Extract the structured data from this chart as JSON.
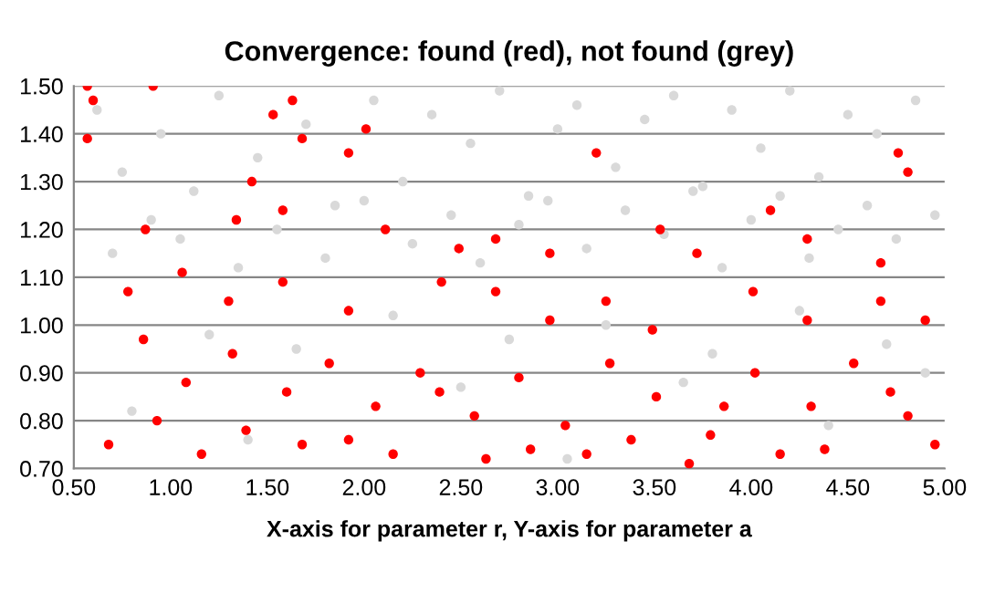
{
  "chart_data": {
    "type": "scatter",
    "title": "Convergence: found (red), not found (grey)",
    "xlabel": "X-axis for parameter r, Y-axis for parameter a",
    "xlim": [
      0.5,
      5.0
    ],
    "ylim": [
      0.7,
      1.5
    ],
    "xticks": [
      {
        "value": 0.5,
        "label": "0.50"
      },
      {
        "value": 1.0,
        "label": "1.00"
      },
      {
        "value": 1.5,
        "label": "1.50"
      },
      {
        "value": 2.0,
        "label": "2.00"
      },
      {
        "value": 2.5,
        "label": "2.50"
      },
      {
        "value": 3.0,
        "label": "3.00"
      },
      {
        "value": 3.5,
        "label": "3.50"
      },
      {
        "value": 4.0,
        "label": "4.00"
      },
      {
        "value": 4.5,
        "label": "4.50"
      },
      {
        "value": 5.0,
        "label": "5.00"
      }
    ],
    "yticks": [
      {
        "value": 0.7,
        "label": "0.70"
      },
      {
        "value": 0.8,
        "label": "0.80"
      },
      {
        "value": 0.9,
        "label": "0.90"
      },
      {
        "value": 1.0,
        "label": "1.00"
      },
      {
        "value": 1.1,
        "label": "1.10"
      },
      {
        "value": 1.2,
        "label": "1.20"
      },
      {
        "value": 1.3,
        "label": "1.30"
      },
      {
        "value": 1.4,
        "label": "1.40"
      },
      {
        "value": 1.5,
        "label": "1.50"
      }
    ],
    "grid": "y",
    "legend": false,
    "marker": "circle",
    "series": [
      {
        "color": "#d9d9d9",
        "x": [
          0.62,
          0.75,
          0.95,
          1.12,
          1.25,
          1.45,
          1.7,
          1.85,
          2.05,
          2.2,
          2.35,
          2.55,
          2.7,
          2.85,
          3.0,
          3.1,
          3.3,
          3.45,
          3.6,
          3.75,
          3.9,
          4.05,
          4.2,
          4.35,
          4.5,
          4.65,
          4.85,
          0.7,
          0.9,
          1.05,
          1.35,
          1.55,
          1.8,
          2.0,
          2.25,
          2.45,
          2.6,
          2.8,
          2.95,
          3.15,
          3.35,
          3.55,
          3.7,
          3.85,
          4.0,
          4.15,
          4.3,
          4.45,
          4.6,
          4.75,
          4.95,
          1.2,
          1.65,
          2.15,
          2.75,
          3.25,
          3.8,
          4.25,
          4.7,
          0.8,
          1.4,
          2.5,
          3.05,
          3.65,
          4.4,
          4.9
        ],
        "values": [
          1.45,
          1.32,
          1.4,
          1.28,
          1.48,
          1.35,
          1.42,
          1.25,
          1.47,
          1.3,
          1.44,
          1.38,
          1.49,
          1.27,
          1.41,
          1.46,
          1.33,
          1.43,
          1.48,
          1.29,
          1.45,
          1.37,
          1.49,
          1.31,
          1.44,
          1.4,
          1.47,
          1.15,
          1.22,
          1.18,
          1.12,
          1.2,
          1.14,
          1.26,
          1.17,
          1.23,
          1.13,
          1.21,
          1.26,
          1.16,
          1.24,
          1.19,
          1.28,
          1.12,
          1.22,
          1.27,
          1.14,
          1.2,
          1.25,
          1.18,
          1.23,
          0.98,
          0.95,
          1.02,
          0.97,
          1.0,
          0.94,
          1.03,
          0.96,
          0.82,
          0.76,
          0.87,
          0.72,
          0.88,
          0.79,
          0.9
        ]
      },
      {
        "color": "#ff0000",
        "x": [
          0.57,
          0.91,
          0.6,
          0.57,
          1.42,
          1.53,
          1.63,
          1.68,
          1.92,
          2.01,
          3.2,
          4.76,
          4.81,
          4.1,
          1.34,
          1.58,
          0.87,
          2.11,
          2.49,
          2.68,
          2.96,
          3.53,
          3.72,
          4.29,
          4.67,
          0.78,
          1.06,
          1.3,
          1.58,
          1.92,
          2.4,
          2.68,
          2.96,
          3.25,
          3.49,
          4.01,
          4.29,
          4.67,
          4.9,
          0.86,
          1.08,
          1.32,
          1.6,
          1.82,
          2.06,
          2.29,
          2.57,
          2.8,
          3.04,
          3.27,
          3.51,
          3.79,
          4.02,
          4.31,
          4.53,
          4.81,
          4.95,
          0.68,
          1.16,
          1.68,
          2.15,
          2.63,
          3.15,
          3.68,
          4.15,
          0.93,
          1.39,
          1.92,
          2.39,
          2.86,
          3.38,
          3.86,
          4.38,
          4.72
        ],
        "values": [
          1.5,
          1.5,
          1.47,
          1.39,
          1.3,
          1.44,
          1.47,
          1.39,
          1.36,
          1.41,
          1.36,
          1.36,
          1.32,
          1.24,
          1.22,
          1.24,
          1.2,
          1.2,
          1.16,
          1.18,
          1.15,
          1.2,
          1.15,
          1.18,
          1.13,
          1.07,
          1.11,
          1.05,
          1.09,
          1.03,
          1.09,
          1.07,
          1.01,
          1.05,
          0.99,
          1.07,
          1.01,
          1.05,
          1.01,
          0.97,
          0.88,
          0.94,
          0.86,
          0.92,
          0.83,
          0.9,
          0.81,
          0.89,
          0.79,
          0.92,
          0.85,
          0.77,
          0.9,
          0.83,
          0.92,
          0.81,
          0.75,
          0.75,
          0.73,
          0.75,
          0.73,
          0.72,
          0.73,
          0.71,
          0.73,
          0.8,
          0.78,
          0.76,
          0.86,
          0.74,
          0.76,
          0.83,
          0.74,
          0.86
        ]
      }
    ]
  }
}
